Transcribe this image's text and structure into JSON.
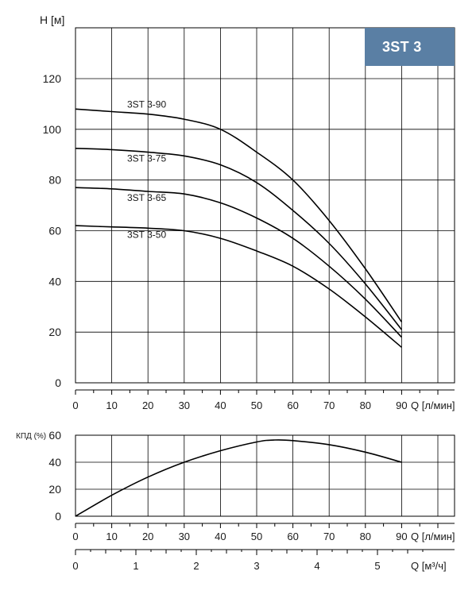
{
  "badge": "3ST 3",
  "chart_data": [
    {
      "type": "line",
      "ylabel": "H [м]",
      "xlabel": "Q [л/мин]",
      "x_ticks": [
        0,
        10,
        20,
        30,
        40,
        50,
        60,
        70,
        80,
        90
      ],
      "y_ticks": [
        0,
        20,
        40,
        60,
        80,
        100,
        120
      ],
      "xlim": [
        0,
        105
      ],
      "ylim": [
        0,
        140
      ],
      "grid": true,
      "series": [
        {
          "name": "3ST 3-90",
          "x": [
            0,
            10,
            20,
            30,
            40,
            50,
            60,
            70,
            80,
            90
          ],
          "values": [
            108,
            107,
            106,
            104,
            100,
            91,
            80,
            64,
            45,
            24
          ]
        },
        {
          "name": "3ST 3-75",
          "x": [
            0,
            10,
            20,
            30,
            40,
            50,
            60,
            70,
            80,
            90
          ],
          "values": [
            92.5,
            92,
            91,
            89.5,
            86,
            79,
            68,
            55,
            39,
            21
          ]
        },
        {
          "name": "3ST 3-65",
          "x": [
            0,
            10,
            20,
            30,
            40,
            50,
            60,
            70,
            80,
            90
          ],
          "values": [
            77,
            76.5,
            75.5,
            74.5,
            71,
            65,
            57,
            46,
            33,
            18
          ]
        },
        {
          "name": "3ST 3-50",
          "x": [
            0,
            10,
            20,
            30,
            40,
            50,
            60,
            70,
            80,
            90
          ],
          "values": [
            62,
            61.5,
            61,
            60,
            57,
            52,
            46,
            37,
            26,
            14
          ]
        }
      ]
    },
    {
      "type": "line",
      "ylabel": "КПД (%)",
      "xlabel": "Q [л/мин]",
      "x_ticks": [
        0,
        10,
        20,
        30,
        40,
        50,
        60,
        70,
        80,
        90
      ],
      "y_ticks": [
        0,
        20,
        40,
        60
      ],
      "xlim": [
        0,
        105
      ],
      "ylim": [
        0,
        60
      ],
      "grid": true,
      "series": [
        {
          "x": [
            0,
            10,
            20,
            30,
            40,
            50,
            55,
            60,
            70,
            80,
            90
          ],
          "values": [
            0,
            15.5,
            29,
            40,
            48.5,
            55,
            56.5,
            56,
            53,
            47.5,
            40
          ]
        }
      ]
    }
  ],
  "secondary_axis": {
    "xlabel": "Q [м³/ч]",
    "ticks": [
      0,
      1,
      2,
      3,
      4,
      5
    ]
  }
}
